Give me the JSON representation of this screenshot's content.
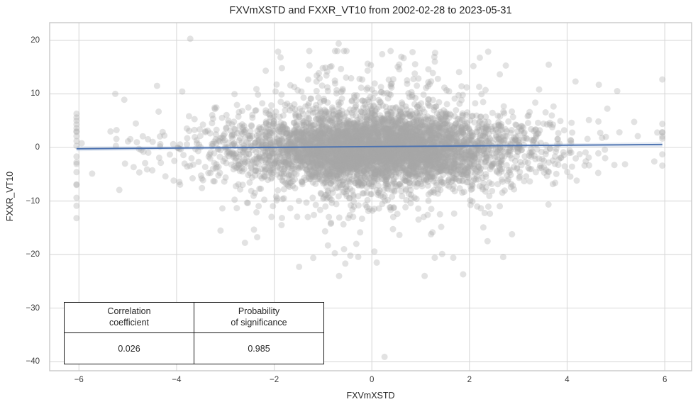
{
  "chart_data": {
    "type": "scatter",
    "title": "FXVmXSTD and FXXR_VT10 from 2002-02-28 to 2023-05-31",
    "xlabel": "FXVmXSTD",
    "ylabel": "FXXR_VT10",
    "date_range": {
      "start": "2002-02-28",
      "end": "2023-05-31"
    },
    "xlim": [
      -6.6,
      6.55
    ],
    "ylim": [
      -41.7,
      23.3
    ],
    "xticks": [
      -6,
      -4,
      -2,
      0,
      2,
      4,
      6
    ],
    "yticks": [
      20,
      10,
      0,
      -10,
      -20,
      -30,
      -40
    ],
    "grid": true,
    "legend": null,
    "styles": {
      "background": "#ffffff",
      "grid_color": "#d8d8d8",
      "spine_color": "#c9c9c9",
      "text_color": "#262626",
      "tick_color": "#3d3d3d",
      "point_color": "#a8a8a8",
      "point_opacity": 0.33,
      "regression_color": "#4c72b0",
      "ci_opacity": 0.15
    },
    "points": {
      "n": 5200,
      "seed": 42,
      "marker_radius_px": 4.5,
      "x_mean": 0.1,
      "x_components": [
        {
          "std": 1.35,
          "w": 0.85
        },
        {
          "std": 2.5,
          "w": 0.15
        }
      ],
      "y_mean": -0.2,
      "y_components": [
        {
          "std": 3.2,
          "w": 0.78
        },
        {
          "std": 6.0,
          "w": 0.18
        },
        {
          "std": 10.0,
          "w": 0.04
        }
      ],
      "x_clip": [
        -6.05,
        5.95
      ],
      "y_clip": [
        -24,
        18
      ]
    },
    "left_edge_strip": {
      "x": -6.05,
      "y_values": [
        6.3,
        5.6,
        5.0,
        4.3,
        3.6,
        2.9,
        2.1,
        1.2,
        0.3,
        -1.7,
        -3.1,
        -4.6,
        -6.9,
        -9.4,
        -10.9,
        -13.2
      ]
    },
    "outliers": [
      [
        -3.72,
        20.3
      ],
      [
        -0.68,
        19.4
      ],
      [
        1.28,
        16.9
      ],
      [
        2.08,
        15.2
      ],
      [
        -0.95,
        14.9
      ],
      [
        1.25,
        13.9
      ],
      [
        4.65,
        11.7
      ],
      [
        -4.4,
        11.5
      ],
      [
        0.26,
        -39.1
      ],
      [
        1.87,
        -23.7
      ],
      [
        0.1,
        -21.5
      ],
      [
        -0.44,
        -20.2
      ],
      [
        1.44,
        -19.9
      ],
      [
        -0.57,
        -19.0
      ],
      [
        -2.6,
        -17.8
      ],
      [
        2.37,
        -17.5
      ]
    ],
    "regression": {
      "x_start": -6.05,
      "y_start": -0.25,
      "x_end": 5.95,
      "y_end": 0.55,
      "ci_halfwidth_end": 0.45,
      "ci_halfwidth_mid": 0.12
    },
    "correlation_coefficient": 0.026,
    "probability_of_significance": 0.985,
    "stats_table": {
      "col1": {
        "line1": "Correlation",
        "line2": "coefficient",
        "value": "0.026"
      },
      "col2": {
        "line1": "Probability",
        "line2": "of significance",
        "value": "0.985"
      }
    }
  }
}
